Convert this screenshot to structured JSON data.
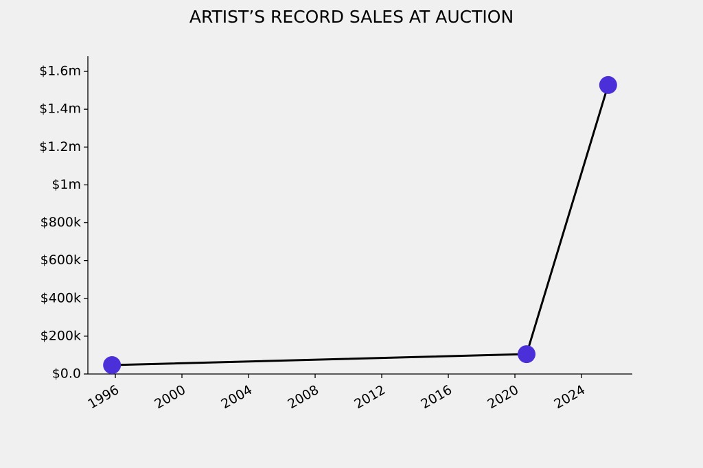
{
  "chart_data": {
    "type": "line",
    "title": "ARTIST’S RECORD SALES AT AUCTION",
    "x": [
      1995.8,
      2020.7,
      2025.6
    ],
    "values": [
      47000,
      105000,
      1528000
    ],
    "color": "#4b30d9",
    "line_color": "#000000",
    "xlim": [
      1994.35,
      2027.05
    ],
    "xticks": [
      1996,
      2000,
      2004,
      2008,
      2012,
      2016,
      2020,
      2024
    ],
    "ylim": [
      0,
      1680000
    ],
    "yticks": [
      {
        "value": 0,
        "label": "$0.0"
      },
      {
        "value": 200000,
        "label": "$200k"
      },
      {
        "value": 400000,
        "label": "$400k"
      },
      {
        "value": 600000,
        "label": "$600k"
      },
      {
        "value": 800000,
        "label": "$800k"
      },
      {
        "value": 1000000,
        "label": "$1m"
      },
      {
        "value": 1200000,
        "label": "$1.2m"
      },
      {
        "value": 1400000,
        "label": "$1.4m"
      },
      {
        "value": 1600000,
        "label": "$1.6m"
      }
    ]
  }
}
